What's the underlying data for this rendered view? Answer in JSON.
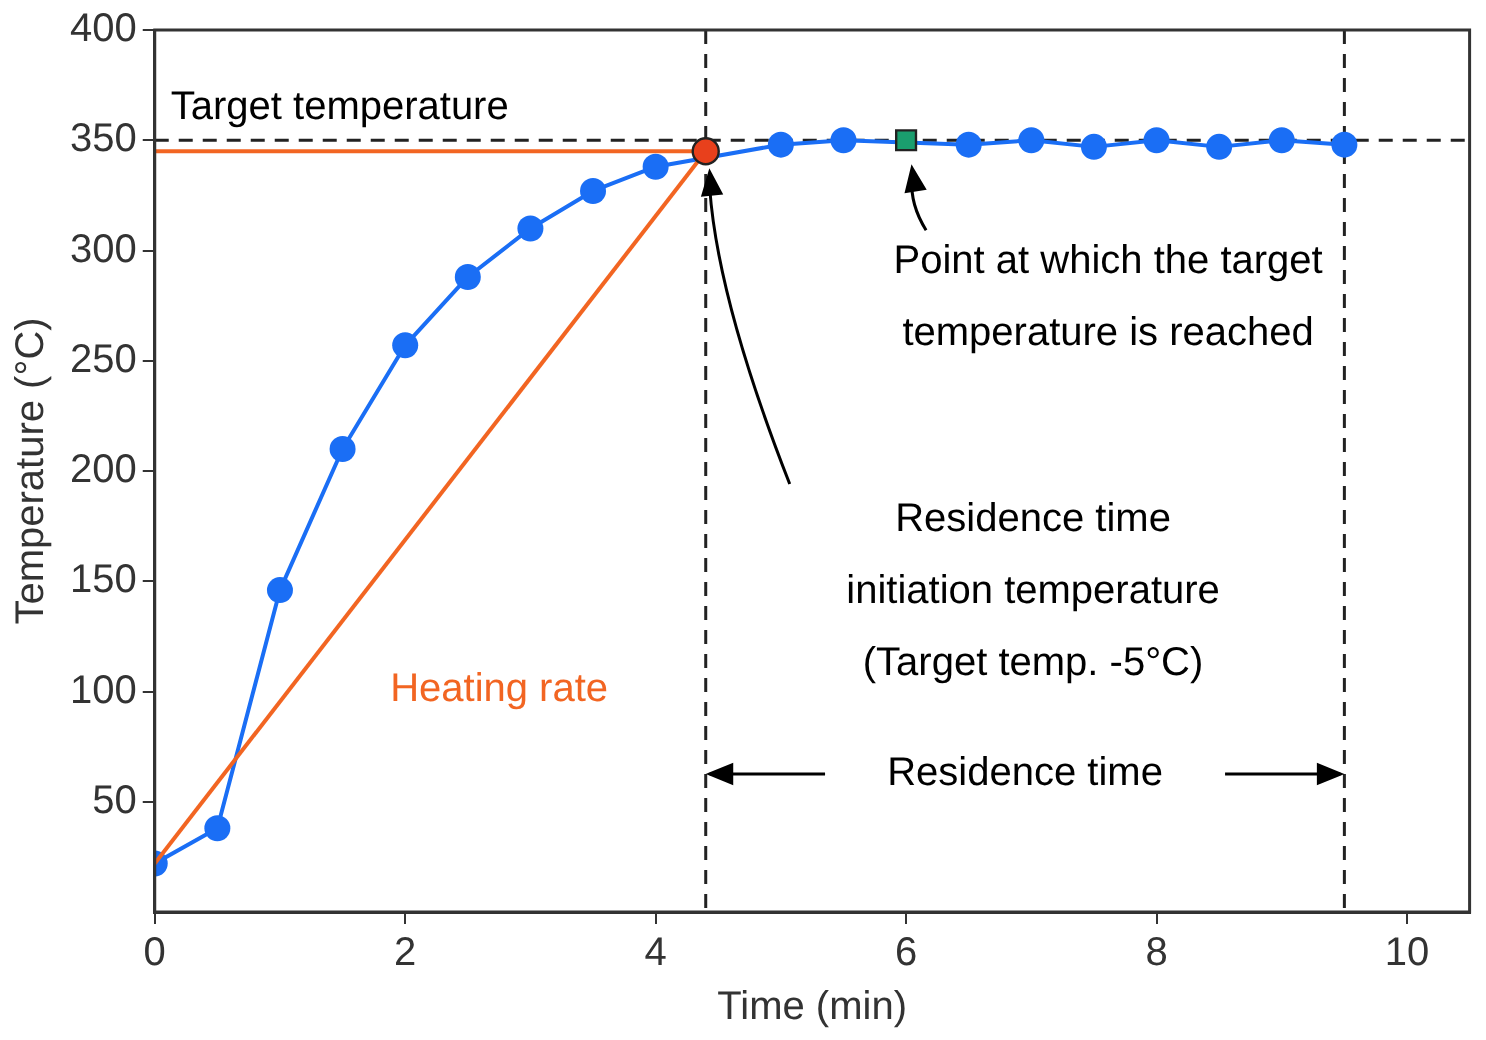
{
  "chart_data": {
    "type": "line",
    "xlabel": "Time (min)",
    "ylabel": "Temperature (°C)",
    "xlim": [
      0,
      10.5
    ],
    "xticks": [
      0,
      2,
      4,
      6,
      8,
      10
    ],
    "ylim": [
      0,
      400
    ],
    "yticks": [
      50,
      100,
      150,
      200,
      250,
      300,
      350,
      400
    ],
    "grid": false,
    "legend": false,
    "series": [
      {
        "color": "#1a6ef5",
        "marker": "circle",
        "x": [
          0,
          0.5,
          1,
          1.5,
          2,
          2.5,
          3,
          3.5,
          4,
          5,
          5.5,
          6.5,
          7,
          7.5,
          8,
          8.5,
          9,
          9.5
        ],
        "values": [
          22,
          38,
          146,
          210,
          257,
          288,
          310,
          327,
          338,
          348,
          350,
          348,
          350,
          347,
          350,
          347,
          350,
          348
        ]
      },
      {
        "color": "#f26522",
        "marker": "none",
        "x": [
          0,
          4.4
        ],
        "values": [
          22,
          345
        ]
      },
      {
        "color": "#f26522",
        "marker": "none",
        "x": [
          0,
          4.4
        ],
        "values": [
          345,
          345
        ]
      },
      {
        "type": "scatter",
        "color": "#e8401c",
        "marker": "circle",
        "x": [
          4.4
        ],
        "values": [
          345
        ]
      },
      {
        "type": "scatter",
        "color": "#1a9e6e",
        "marker": "square",
        "x": [
          6
        ],
        "values": [
          350
        ]
      }
    ],
    "ref_lines": [
      {
        "axis": "y",
        "value": 350,
        "label": "Target temperature",
        "color": "#222222",
        "line_style": "dashed"
      },
      {
        "axis": "x",
        "value": 4.4,
        "color": "#222222",
        "line_style": "dashed"
      },
      {
        "axis": "x",
        "value": 9.5,
        "color": "#222222",
        "line_style": "dashed"
      }
    ],
    "annotations": [
      "Heating rate",
      {
        "text": "Point at which the target\ntemperature is reached",
        "x": 6,
        "y": 350
      },
      "Residence time\ninitiation temperature\n(Target temp. -5°C)",
      "Residence time"
    ]
  }
}
